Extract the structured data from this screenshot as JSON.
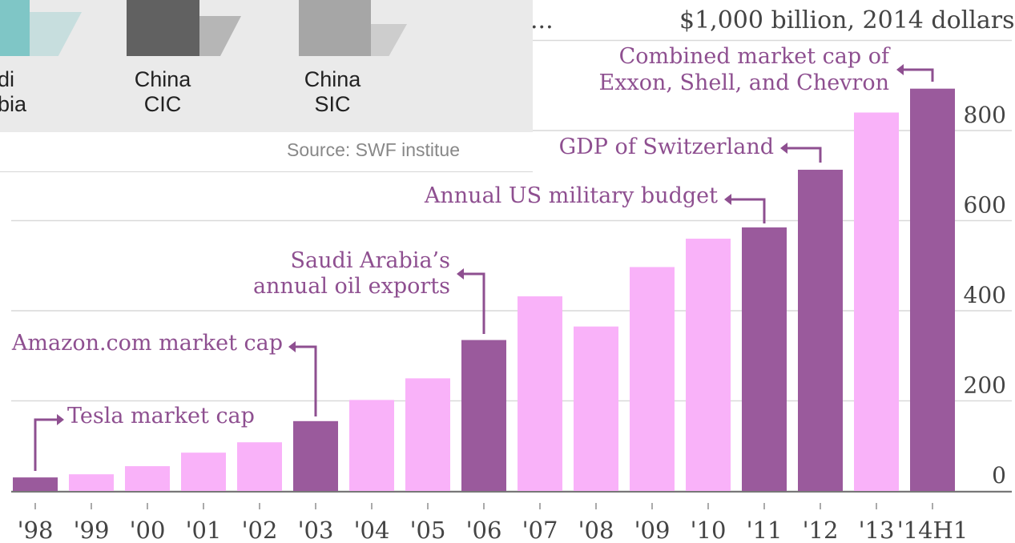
{
  "header": {
    "units": "$1,000 billion, 2014 dollars",
    "title_fragment": "..."
  },
  "inset": {
    "items": [
      {
        "label": "di\nbia",
        "color": "#7fc6c6"
      },
      {
        "label": "China\nCIC",
        "color": "#616161"
      },
      {
        "label": "China\nSIC",
        "color": "#a6a6a6"
      }
    ],
    "source": "Source: SWF institue"
  },
  "colors": {
    "highlight": "#9a5a9c",
    "regular": "#f9b2f9",
    "annotation": "#8e4f90",
    "grid": "#d9d9d9",
    "text": "#444444"
  },
  "chart_data": {
    "type": "bar",
    "categories": [
      "'98",
      "'99",
      "'00",
      "'01",
      "'02",
      "'03",
      "'04",
      "'05",
      "'06",
      "'07",
      "'08",
      "'09",
      "'10",
      "'11",
      "'12",
      "'13",
      "'14H1"
    ],
    "values": [
      30,
      37,
      55,
      85,
      108,
      155,
      202,
      250,
      335,
      432,
      365,
      497,
      560,
      585,
      713,
      840,
      893
    ],
    "highlighted": [
      true,
      false,
      false,
      false,
      false,
      true,
      false,
      false,
      true,
      false,
      false,
      false,
      false,
      true,
      true,
      false,
      true
    ],
    "y_ticks": [
      0,
      200,
      400,
      600,
      800
    ],
    "ylim": [
      0,
      1000
    ],
    "y_axis_side": "right",
    "annotations": [
      {
        "text": "Tesla market cap",
        "bar_index": 0
      },
      {
        "text": "Amazon.com market cap",
        "bar_index": 5
      },
      {
        "text": "Saudi Arabia’s\nannual oil exports",
        "bar_index": 8
      },
      {
        "text": "Annual US military budget",
        "bar_index": 13
      },
      {
        "text": "GDP of Switzerland",
        "bar_index": 14
      },
      {
        "text": "Combined market cap of\nExxon, Shell, and Chevron",
        "bar_index": 16
      }
    ]
  }
}
